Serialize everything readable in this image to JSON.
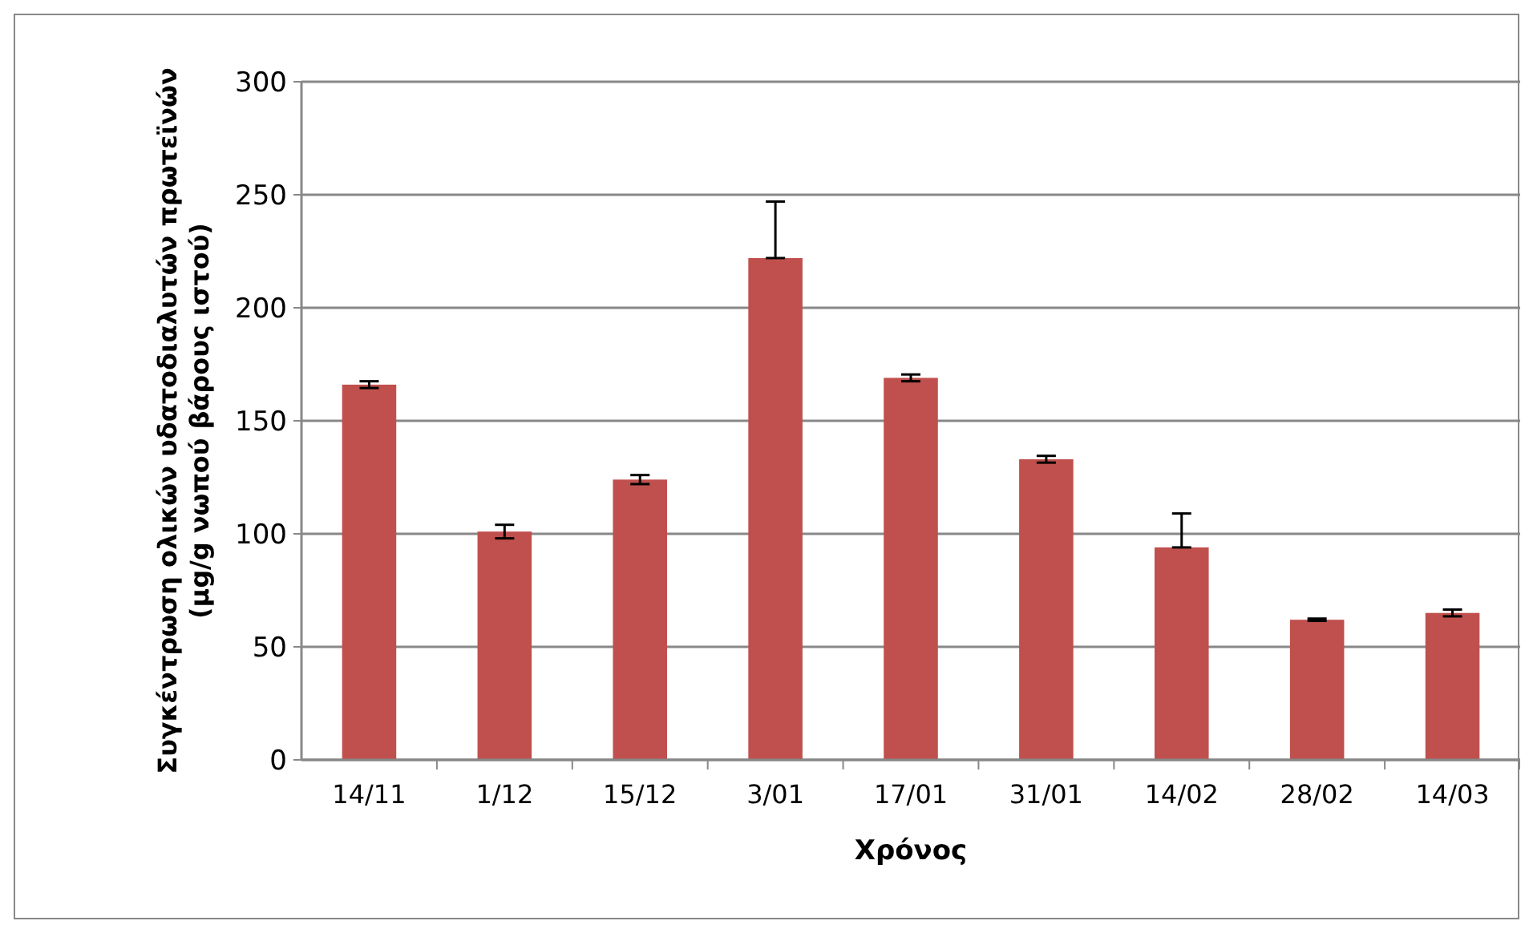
{
  "chart_data": {
    "type": "bar",
    "xlabel": "Χρόνος",
    "ylabel": "Συγκέντρωση ολικών υδατοδιαλυτών πρωτεϊνών (μg/g νωπού βάρους ιστού)",
    "categories": [
      "14/11",
      "1/12",
      "15/12",
      "3/01",
      "17/01",
      "31/01",
      "14/02",
      "28/02",
      "14/03"
    ],
    "values": [
      166,
      101,
      124,
      222,
      169,
      133,
      94,
      62,
      65
    ],
    "errors": [
      1.5,
      3,
      2,
      [
        222,
        247
      ],
      1.5,
      1.5,
      [
        94,
        109
      ],
      0.5,
      1.5
    ],
    "color": "#c0504d",
    "ylim": [
      0,
      300
    ],
    "yticks": [
      0,
      50,
      100,
      150,
      200,
      250,
      300
    ],
    "grid": "y"
  }
}
